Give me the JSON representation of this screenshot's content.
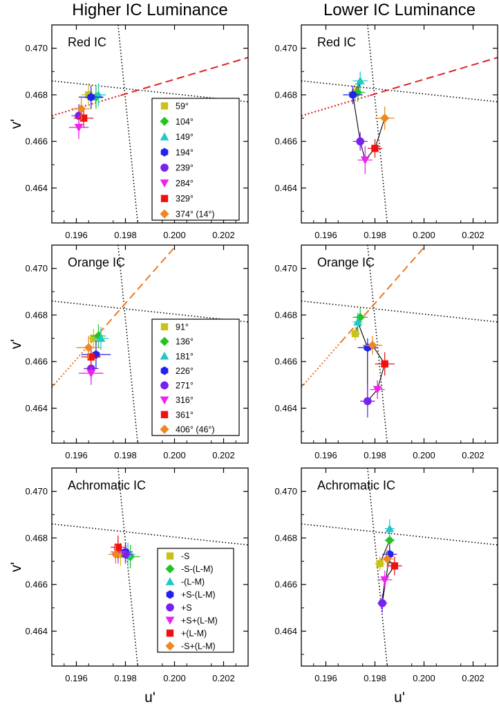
{
  "figure": {
    "col_titles": [
      "Higher IC Luminance",
      "Lower IC Luminance"
    ],
    "xlabel": "u'",
    "ylabel": "v'",
    "xlim": [
      0.195,
      0.203
    ],
    "ylim": [
      0.4625,
      0.471
    ],
    "xticks": [
      0.196,
      0.198,
      0.2,
      0.202
    ],
    "xtick_labels": [
      "0.196",
      "0.198",
      "0.200",
      "0.202"
    ],
    "yticks": [
      0.464,
      0.466,
      0.468,
      0.47
    ],
    "ytick_labels": [
      "0.464",
      "0.466",
      "0.468",
      "0.470"
    ],
    "series_colors": [
      "#c8c21a",
      "#22c422",
      "#22c8c8",
      "#2222ee",
      "#7722ee",
      "#ee22ee",
      "#ee1111",
      "#ee8822"
    ],
    "series_markers": [
      "square",
      "diamond",
      "triangle-up",
      "hexagon",
      "circle",
      "triangle-down",
      "square",
      "diamond"
    ]
  },
  "chart_data": [
    {
      "type": "scatter",
      "title": "Red IC",
      "column": "Higher IC Luminance",
      "xlabel": "",
      "ylabel": "v'",
      "connected": false,
      "legend": [
        "59°",
        "104°",
        "149°",
        "194°",
        "239°",
        "284°",
        "329°",
        "374° (14°)"
      ],
      "hue_line": {
        "color": "#dd2222",
        "x1": 0.195,
        "y1": 0.4671,
        "x2": 0.203,
        "y2": 0.4696,
        "solid_from": 0.1978
      },
      "points": [
        {
          "u": 0.1965,
          "v": 0.468,
          "eu": 0.0003,
          "ev": 0.0005
        },
        {
          "u": 0.1968,
          "v": 0.4679,
          "eu": 0.0003,
          "ev": 0.0005
        },
        {
          "u": 0.1969,
          "v": 0.468,
          "eu": 0.0003,
          "ev": 0.0005
        },
        {
          "u": 0.1966,
          "v": 0.4679,
          "eu": 0.0005,
          "ev": 0.0005
        },
        {
          "u": 0.1961,
          "v": 0.4671,
          "eu": 0.0003,
          "ev": 0.0005
        },
        {
          "u": 0.1961,
          "v": 0.4666,
          "eu": 0.0004,
          "ev": 0.0005
        },
        {
          "u": 0.1963,
          "v": 0.467,
          "eu": 0.0004,
          "ev": 0.0004
        },
        {
          "u": 0.1962,
          "v": 0.4674,
          "eu": 0.0004,
          "ev": 0.0005
        }
      ]
    },
    {
      "type": "scatter",
      "title": "Red IC",
      "column": "Lower IC Luminance",
      "xlabel": "",
      "ylabel": "",
      "connected": true,
      "hue_line": {
        "color": "#dd2222",
        "x1": 0.195,
        "y1": 0.4671,
        "x2": 0.203,
        "y2": 0.4696,
        "solid_from": 0.1978
      },
      "points": [
        {
          "u": 0.1972,
          "v": 0.4681,
          "eu": 0.0003,
          "ev": 0.0004
        },
        {
          "u": 0.1973,
          "v": 0.4681,
          "eu": 0.0003,
          "ev": 0.0004
        },
        {
          "u": 0.1974,
          "v": 0.4686,
          "eu": 0.0003,
          "ev": 0.0004
        },
        {
          "u": 0.1971,
          "v": 0.468,
          "eu": 0.0004,
          "ev": 0.0004
        },
        {
          "u": 0.1974,
          "v": 0.466,
          "eu": 0.0003,
          "ev": 0.0004
        },
        {
          "u": 0.1976,
          "v": 0.4652,
          "eu": 0.0003,
          "ev": 0.0006
        },
        {
          "u": 0.198,
          "v": 0.4657,
          "eu": 0.0003,
          "ev": 0.0004
        },
        {
          "u": 0.1984,
          "v": 0.467,
          "eu": 0.0004,
          "ev": 0.0005
        }
      ]
    },
    {
      "type": "scatter",
      "title": "Orange IC",
      "column": "Higher IC Luminance",
      "xlabel": "",
      "ylabel": "v'",
      "connected": false,
      "legend": [
        "91°",
        "136°",
        "181°",
        "226°",
        "271°",
        "316°",
        "361°",
        "406° (46°)"
      ],
      "hue_line": {
        "color": "#ee7722",
        "x1": 0.195,
        "y1": 0.4649,
        "x2": 0.2005,
        "y2": 0.4715,
        "solid_from": 0.1966
      },
      "points": [
        {
          "u": 0.1967,
          "v": 0.467,
          "eu": 0.0002,
          "ev": 0.0004
        },
        {
          "u": 0.1969,
          "v": 0.4671,
          "eu": 0.0003,
          "ev": 0.0005
        },
        {
          "u": 0.197,
          "v": 0.467,
          "eu": 0.0003,
          "ev": 0.0005
        },
        {
          "u": 0.1968,
          "v": 0.4663,
          "eu": 0.0006,
          "ev": 0.0006
        },
        {
          "u": 0.1966,
          "v": 0.4657,
          "eu": 0.0003,
          "ev": 0.0005
        },
        {
          "u": 0.1966,
          "v": 0.4655,
          "eu": 0.0005,
          "ev": 0.0005
        },
        {
          "u": 0.1966,
          "v": 0.4662,
          "eu": 0.0004,
          "ev": 0.0004
        },
        {
          "u": 0.1965,
          "v": 0.4666,
          "eu": 0.0005,
          "ev": 0.0005
        }
      ]
    },
    {
      "type": "scatter",
      "title": "Orange IC",
      "column": "Lower IC Luminance",
      "xlabel": "",
      "ylabel": "",
      "connected": true,
      "hue_line": {
        "color": "#ee7722",
        "x1": 0.195,
        "y1": 0.4649,
        "x2": 0.2005,
        "y2": 0.4715,
        "solid_from": 0.1966
      },
      "points": [
        {
          "u": 0.1972,
          "v": 0.4672,
          "eu": 0.0002,
          "ev": 0.0003
        },
        {
          "u": 0.1974,
          "v": 0.4679,
          "eu": 0.0003,
          "ev": 0.0004
        },
        {
          "u": 0.1973,
          "v": 0.4677,
          "eu": 0.0002,
          "ev": 0.0004
        },
        {
          "u": 0.1977,
          "v": 0.4666,
          "eu": 0.0004,
          "ev": 0.0004
        },
        {
          "u": 0.1977,
          "v": 0.4643,
          "eu": 0.0003,
          "ev": 0.0007
        },
        {
          "u": 0.1981,
          "v": 0.4648,
          "eu": 0.0003,
          "ev": 0.0004
        },
        {
          "u": 0.1984,
          "v": 0.4659,
          "eu": 0.0004,
          "ev": 0.0005
        },
        {
          "u": 0.1979,
          "v": 0.4667,
          "eu": 0.0004,
          "ev": 0.0004
        }
      ]
    },
    {
      "type": "scatter",
      "title": "Achromatic IC",
      "column": "Higher IC Luminance",
      "xlabel": "u'",
      "ylabel": "v'",
      "connected": false,
      "legend": [
        "-S",
        "-S-(L-M)",
        "-(L-M)",
        "+S-(L-M)",
        "+S",
        "+S+(L-M)",
        "+(L-M)",
        "-S+(L-M)"
      ],
      "hue_line": null,
      "points": [
        {
          "u": 0.1978,
          "v": 0.4673,
          "eu": 0.0003,
          "ev": 0.0005
        },
        {
          "u": 0.1982,
          "v": 0.4672,
          "eu": 0.0004,
          "ev": 0.0005
        },
        {
          "u": 0.1981,
          "v": 0.4673,
          "eu": 0.0003,
          "ev": 0.0005
        },
        {
          "u": 0.198,
          "v": 0.4674,
          "eu": 0.0003,
          "ev": 0.0004
        },
        {
          "u": 0.198,
          "v": 0.4673,
          "eu": 0.0003,
          "ev": 0.0004
        },
        {
          "u": 0.1977,
          "v": 0.4674,
          "eu": 0.0003,
          "ev": 0.0005
        },
        {
          "u": 0.1977,
          "v": 0.4676,
          "eu": 0.0003,
          "ev": 0.0005
        },
        {
          "u": 0.1976,
          "v": 0.4673,
          "eu": 0.0003,
          "ev": 0.0004
        }
      ]
    },
    {
      "type": "scatter",
      "title": "Achromatic IC",
      "column": "Lower IC Luminance",
      "xlabel": "u'",
      "ylabel": "",
      "connected": true,
      "hue_line": null,
      "points": [
        {
          "u": 0.1982,
          "v": 0.4669,
          "eu": 0.0002,
          "ev": 0.0003
        },
        {
          "u": 0.1986,
          "v": 0.4679,
          "eu": 0.0002,
          "ev": 0.0004
        },
        {
          "u": 0.1986,
          "v": 0.4684,
          "eu": 0.0002,
          "ev": 0.0004
        },
        {
          "u": 0.1986,
          "v": 0.4673,
          "eu": 0.0003,
          "ev": 0.0004
        },
        {
          "u": 0.1983,
          "v": 0.4652,
          "eu": 0.0002,
          "ev": 0.0004
        },
        {
          "u": 0.1984,
          "v": 0.4662,
          "eu": 0.0003,
          "ev": 0.0004
        },
        {
          "u": 0.1988,
          "v": 0.4668,
          "eu": 0.0003,
          "ev": 0.0004
        },
        {
          "u": 0.1985,
          "v": 0.4671,
          "eu": 0.0003,
          "ev": 0.0004
        }
      ]
    }
  ]
}
